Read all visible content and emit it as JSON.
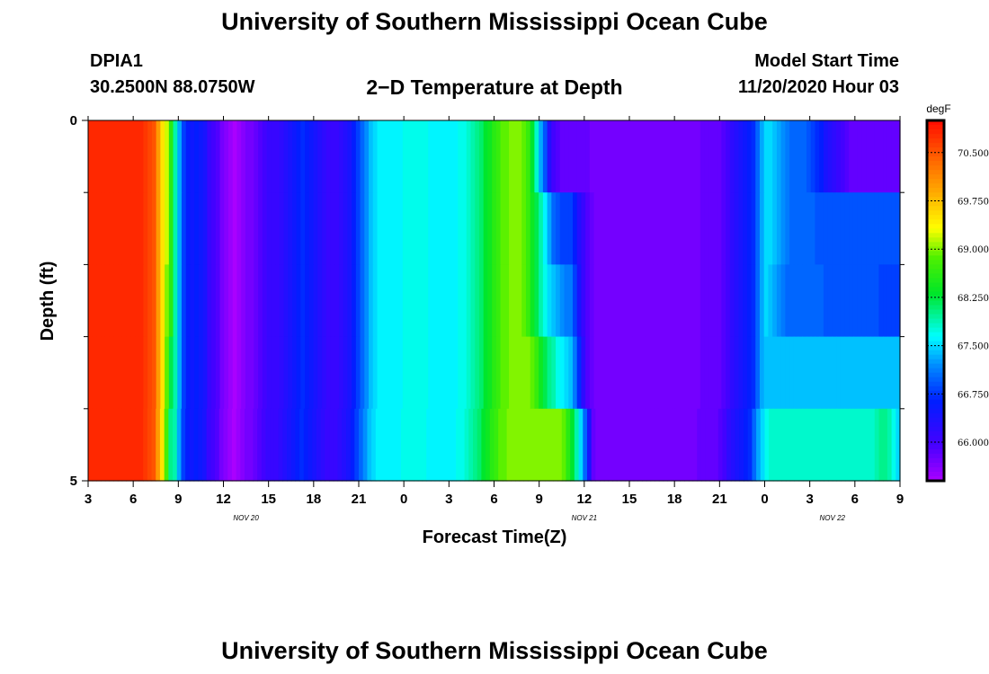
{
  "header": {
    "title": "University of Southern Mississippi Ocean Cube",
    "station_id": "DPIA1",
    "station_coords": "30.2500N 88.0750W",
    "plot_title": "2−D Temperature at Depth",
    "model_start_label": "Model Start Time",
    "model_start_value": "11/20/2020 Hour 03"
  },
  "footer": {
    "title": "University of Southern Mississippi Ocean Cube"
  },
  "chart_data": {
    "type": "heatmap",
    "title": "2−D Temperature at Depth",
    "xlabel": "Forecast Time(Z)",
    "ylabel": "Depth (ft)",
    "x_start_hour": 3,
    "x_hours": 54,
    "x_ticks": [
      {
        "hour": 0,
        "label": "3"
      },
      {
        "hour": 3,
        "label": "6"
      },
      {
        "hour": 6,
        "label": "9"
      },
      {
        "hour": 9,
        "label": "12"
      },
      {
        "hour": 12,
        "label": "15"
      },
      {
        "hour": 15,
        "label": "18"
      },
      {
        "hour": 18,
        "label": "21"
      },
      {
        "hour": 21,
        "label": "0"
      },
      {
        "hour": 24,
        "label": "3"
      },
      {
        "hour": 27,
        "label": "6"
      },
      {
        "hour": 30,
        "label": "9"
      },
      {
        "hour": 33,
        "label": "12"
      },
      {
        "hour": 36,
        "label": "15"
      },
      {
        "hour": 39,
        "label": "18"
      },
      {
        "hour": 42,
        "label": "21"
      },
      {
        "hour": 45,
        "label": "0"
      },
      {
        "hour": 48,
        "label": "3"
      },
      {
        "hour": 51,
        "label": "6"
      },
      {
        "hour": 54,
        "label": "9"
      }
    ],
    "date_labels": [
      {
        "hour": 10.5,
        "label": "NOV  20"
      },
      {
        "hour": 33,
        "label": "NOV  21"
      },
      {
        "hour": 49.5,
        "label": "NOV  22"
      }
    ],
    "y_range": [
      0,
      5
    ],
    "y_tick_labels": [
      {
        "value": 0,
        "label": "0"
      },
      {
        "value": 5,
        "label": "5"
      }
    ],
    "y_minor_ticks": [
      1,
      2,
      3,
      4
    ],
    "depth_layers": [
      0.5,
      1.5,
      2.5,
      3.5,
      4.5
    ],
    "colorbar": {
      "unit": "degF",
      "min": 65.4,
      "max": 71.0,
      "tick_values": [
        70.5,
        69.75,
        69.0,
        68.25,
        67.5,
        66.75,
        66.0
      ],
      "tick_labels": [
        "70.500",
        "69.750",
        "69.000",
        "68.250",
        "67.500",
        "66.750",
        "66.000"
      ]
    },
    "values_degF": [
      [
        70.8,
        70.8,
        70.8,
        70.8,
        70.8,
        70.8,
        70.8,
        70.8,
        70.8,
        70.8,
        70.8,
        70.8,
        70.8,
        70.7,
        70.6,
        70.5,
        70.0,
        69.5,
        69.2,
        68.6,
        67.9,
        67.3,
        66.8,
        66.6,
        66.5,
        66.6,
        66.5,
        66.4,
        66.1,
        66.0,
        65.9,
        65.7,
        65.6,
        65.5,
        65.4,
        65.5,
        65.6,
        65.7,
        65.7,
        65.8,
        65.9,
        66.0,
        66.1,
        66.1,
        66.1,
        66.2,
        66.3,
        66.4,
        66.5,
        66.6,
        66.7,
        66.6,
        66.5,
        66.4,
        66.3,
        66.2,
        66.1,
        66.1,
        66.1,
        66.2,
        66.3,
        66.4,
        66.6,
        66.8,
        67.0,
        67.2,
        67.4,
        67.5,
        67.6,
        67.6,
        67.6,
        67.6,
        67.6,
        67.6,
        67.7,
        67.7,
        67.7,
        67.7,
        67.7,
        67.7,
        67.6,
        67.6,
        67.6,
        67.6,
        67.6,
        67.6,
        67.6,
        67.7,
        67.7,
        67.8,
        67.9,
        68.0,
        68.1,
        68.3,
        68.4,
        68.6,
        68.7,
        68.9,
        68.9,
        69.0,
        69.0,
        69.0,
        68.9,
        68.7,
        68.3,
        67.8,
        67.3,
        66.9,
        66.3,
        66.0,
        65.9,
        65.8,
        65.8,
        65.8,
        65.8,
        65.8,
        65.8,
        65.8,
        65.7,
        65.7,
        65.7,
        65.7,
        65.7,
        65.7,
        65.7,
        65.7,
        65.7,
        65.7,
        65.7,
        65.7,
        65.7,
        65.7,
        65.7,
        65.7,
        65.7,
        65.7,
        65.7,
        65.7,
        65.7,
        65.7,
        65.7,
        65.7,
        65.7,
        65.7,
        65.8,
        65.8,
        65.8,
        65.8,
        65.8,
        65.9,
        66.0,
        66.2,
        66.3,
        66.4,
        66.5,
        66.6,
        66.7,
        67.0,
        67.3,
        67.5,
        67.5,
        67.4,
        67.3,
        67.2,
        67.1,
        67.0,
        67.0,
        67.0,
        67.0,
        66.9,
        66.8,
        66.7,
        66.6,
        66.4,
        66.3,
        66.2,
        66.1,
        66.0,
        65.9,
        65.8,
        65.8,
        65.8,
        65.8,
        65.8,
        65.8,
        65.8,
        65.8,
        65.8,
        65.8,
        65.8,
        65.8
      ],
      [
        70.8,
        70.8,
        70.8,
        70.8,
        70.8,
        70.8,
        70.8,
        70.8,
        70.8,
        70.8,
        70.8,
        70.8,
        70.8,
        70.7,
        70.6,
        70.5,
        70.0,
        69.5,
        69.2,
        68.6,
        67.9,
        67.3,
        66.8,
        66.6,
        66.5,
        66.6,
        66.5,
        66.4,
        66.1,
        66.0,
        65.9,
        65.7,
        65.6,
        65.5,
        65.4,
        65.5,
        65.6,
        65.7,
        65.7,
        65.8,
        65.9,
        66.0,
        66.1,
        66.1,
        66.1,
        66.2,
        66.3,
        66.4,
        66.5,
        66.6,
        66.7,
        66.6,
        66.5,
        66.4,
        66.3,
        66.2,
        66.1,
        66.1,
        66.1,
        66.2,
        66.3,
        66.4,
        66.6,
        66.8,
        67.0,
        67.2,
        67.4,
        67.5,
        67.6,
        67.6,
        67.6,
        67.6,
        67.6,
        67.6,
        67.7,
        67.7,
        67.7,
        67.7,
        67.7,
        67.7,
        67.6,
        67.6,
        67.6,
        67.6,
        67.6,
        67.6,
        67.6,
        67.7,
        67.7,
        67.8,
        67.9,
        68.0,
        68.1,
        68.3,
        68.4,
        68.6,
        68.7,
        68.9,
        68.9,
        69.0,
        69.0,
        69.0,
        68.9,
        68.7,
        68.4,
        68.2,
        67.9,
        67.6,
        67.3,
        67.0,
        66.9,
        66.8,
        66.8,
        66.8,
        66.6,
        66.3,
        66.1,
        65.9,
        65.8,
        65.7,
        65.7,
        65.7,
        65.7,
        65.7,
        65.7,
        65.7,
        65.7,
        65.7,
        65.7,
        65.7,
        65.7,
        65.7,
        65.7,
        65.7,
        65.7,
        65.7,
        65.7,
        65.7,
        65.7,
        65.7,
        65.7,
        65.7,
        65.7,
        65.7,
        65.8,
        65.8,
        65.8,
        65.8,
        65.8,
        65.9,
        66.0,
        66.2,
        66.3,
        66.4,
        66.5,
        66.6,
        66.7,
        67.0,
        67.3,
        67.5,
        67.5,
        67.4,
        67.3,
        67.2,
        67.1,
        67.0,
        67.0,
        67.0,
        67.0,
        67.0,
        67.0,
        66.9,
        66.9,
        66.9,
        66.9,
        66.9,
        66.9,
        66.9,
        66.9,
        66.9,
        66.9,
        66.9,
        66.9,
        66.9,
        66.9,
        66.9,
        66.9,
        66.9,
        66.9,
        66.9,
        66.9
      ],
      [
        70.8,
        70.8,
        70.8,
        70.8,
        70.8,
        70.8,
        70.8,
        70.8,
        70.8,
        70.8,
        70.8,
        70.8,
        70.8,
        70.7,
        70.6,
        70.5,
        70.0,
        69.5,
        69.0,
        68.6,
        67.9,
        67.3,
        66.8,
        66.6,
        66.5,
        66.6,
        66.5,
        66.4,
        66.1,
        66.0,
        65.9,
        65.7,
        65.6,
        65.5,
        65.4,
        65.5,
        65.6,
        65.7,
        65.7,
        65.8,
        65.9,
        66.0,
        66.1,
        66.1,
        66.1,
        66.2,
        66.3,
        66.4,
        66.5,
        66.6,
        66.7,
        66.6,
        66.5,
        66.4,
        66.3,
        66.2,
        66.1,
        66.1,
        66.1,
        66.2,
        66.3,
        66.4,
        66.6,
        66.8,
        67.0,
        67.2,
        67.4,
        67.5,
        67.6,
        67.6,
        67.6,
        67.6,
        67.6,
        67.6,
        67.7,
        67.7,
        67.7,
        67.7,
        67.7,
        67.7,
        67.6,
        67.6,
        67.6,
        67.6,
        67.6,
        67.6,
        67.6,
        67.7,
        67.7,
        67.8,
        67.9,
        68.0,
        68.1,
        68.3,
        68.4,
        68.6,
        68.7,
        68.9,
        68.9,
        69.0,
        69.0,
        69.0,
        68.9,
        68.7,
        68.4,
        68.2,
        67.9,
        67.7,
        67.5,
        67.4,
        67.3,
        67.2,
        67.1,
        67.1,
        66.8,
        66.4,
        66.1,
        65.9,
        65.8,
        65.7,
        65.7,
        65.7,
        65.7,
        65.7,
        65.7,
        65.7,
        65.7,
        65.7,
        65.7,
        65.7,
        65.7,
        65.7,
        65.7,
        65.7,
        65.7,
        65.7,
        65.7,
        65.7,
        65.7,
        65.7,
        65.7,
        65.7,
        65.7,
        65.7,
        65.8,
        65.8,
        65.8,
        65.8,
        65.8,
        65.9,
        66.0,
        66.2,
        66.3,
        66.4,
        66.5,
        66.6,
        66.7,
        67.0,
        67.3,
        67.5,
        67.4,
        67.3,
        67.2,
        67.1,
        67.0,
        67.0,
        67.0,
        67.0,
        67.0,
        67.0,
        67.0,
        67.0,
        67.0,
        66.9,
        66.9,
        66.9,
        66.9,
        66.9,
        66.9,
        66.9,
        66.9,
        66.9,
        66.9,
        66.9,
        66.9,
        66.9,
        66.8,
        66.8,
        66.8,
        66.8,
        66.8
      ],
      [
        70.8,
        70.8,
        70.8,
        70.8,
        70.8,
        70.8,
        70.8,
        70.8,
        70.8,
        70.8,
        70.8,
        70.8,
        70.8,
        70.7,
        70.6,
        70.5,
        70.0,
        69.5,
        68.9,
        68.2,
        67.9,
        67.3,
        66.8,
        66.6,
        66.5,
        66.6,
        66.5,
        66.4,
        66.1,
        66.0,
        65.9,
        65.7,
        65.6,
        65.5,
        65.4,
        65.5,
        65.6,
        65.7,
        65.7,
        65.8,
        65.9,
        66.0,
        66.1,
        66.1,
        66.1,
        66.2,
        66.3,
        66.4,
        66.5,
        66.6,
        66.7,
        66.6,
        66.5,
        66.4,
        66.3,
        66.2,
        66.1,
        66.1,
        66.1,
        66.2,
        66.3,
        66.4,
        66.6,
        66.8,
        67.0,
        67.2,
        67.4,
        67.5,
        67.6,
        67.6,
        67.6,
        67.6,
        67.6,
        67.6,
        67.7,
        67.7,
        67.7,
        67.7,
        67.7,
        67.7,
        67.6,
        67.6,
        67.6,
        67.6,
        67.6,
        67.6,
        67.6,
        67.7,
        67.7,
        67.8,
        67.9,
        68.0,
        68.1,
        68.3,
        68.4,
        68.6,
        68.7,
        68.9,
        68.9,
        69.0,
        69.0,
        69.0,
        69.0,
        69.0,
        68.9,
        68.7,
        68.4,
        68.2,
        68.0,
        67.9,
        67.7,
        67.6,
        67.5,
        67.4,
        67.1,
        66.7,
        66.2,
        65.9,
        65.8,
        65.7,
        65.7,
        65.7,
        65.7,
        65.7,
        65.7,
        65.7,
        65.7,
        65.7,
        65.7,
        65.7,
        65.7,
        65.7,
        65.7,
        65.7,
        65.7,
        65.7,
        65.7,
        65.7,
        65.7,
        65.7,
        65.7,
        65.7,
        65.7,
        65.7,
        65.8,
        65.8,
        65.8,
        65.8,
        65.8,
        65.9,
        66.0,
        66.2,
        66.3,
        66.4,
        66.5,
        66.6,
        66.7,
        67.0,
        67.3,
        67.4,
        67.4,
        67.4,
        67.4,
        67.4,
        67.4,
        67.4,
        67.4,
        67.4,
        67.4,
        67.4,
        67.4,
        67.4,
        67.4,
        67.4,
        67.4,
        67.4,
        67.4,
        67.4,
        67.4,
        67.4,
        67.4,
        67.4,
        67.4,
        67.4,
        67.4,
        67.4,
        67.4,
        67.4,
        67.4,
        67.4,
        67.4
      ],
      [
        70.8,
        70.8,
        70.8,
        70.8,
        70.8,
        70.8,
        70.8,
        70.8,
        70.8,
        70.8,
        70.8,
        70.8,
        70.8,
        70.7,
        70.6,
        70.5,
        70.0,
        69.5,
        68.8,
        68.0,
        67.9,
        67.3,
        66.8,
        66.6,
        66.5,
        66.6,
        66.5,
        66.4,
        66.1,
        66.0,
        65.9,
        65.7,
        65.6,
        65.5,
        65.4,
        65.5,
        65.6,
        65.7,
        65.7,
        65.8,
        65.9,
        66.0,
        66.1,
        66.1,
        66.1,
        66.2,
        66.3,
        66.4,
        66.5,
        66.6,
        66.7,
        66.6,
        66.5,
        66.4,
        66.3,
        66.2,
        66.1,
        66.1,
        66.1,
        66.2,
        66.3,
        66.4,
        66.6,
        66.8,
        67.0,
        67.2,
        67.4,
        67.5,
        67.6,
        67.6,
        67.6,
        67.6,
        67.6,
        67.6,
        67.7,
        67.7,
        67.7,
        67.7,
        67.7,
        67.7,
        67.6,
        67.6,
        67.6,
        67.6,
        67.6,
        67.6,
        67.6,
        67.7,
        67.7,
        67.8,
        67.9,
        68.0,
        68.1,
        68.3,
        68.4,
        68.6,
        68.7,
        68.9,
        68.9,
        69.0,
        69.0,
        69.0,
        69.0,
        69.0,
        69.0,
        69.0,
        69.0,
        69.0,
        69.0,
        69.0,
        69.0,
        69.0,
        68.9,
        68.6,
        68.3,
        67.9,
        67.5,
        67.0,
        66.4,
        65.8,
        65.7,
        65.7,
        65.7,
        65.7,
        65.7,
        65.7,
        65.7,
        65.7,
        65.7,
        65.7,
        65.7,
        65.7,
        65.7,
        65.7,
        65.7,
        65.7,
        65.7,
        65.7,
        65.7,
        65.7,
        65.7,
        65.7,
        65.7,
        65.7,
        65.8,
        65.8,
        65.8,
        65.8,
        65.8,
        65.9,
        66.0,
        66.2,
        66.3,
        66.4,
        66.5,
        66.6,
        66.7,
        67.0,
        67.3,
        67.5,
        67.7,
        67.8,
        67.8,
        67.8,
        67.8,
        67.8,
        67.8,
        67.8,
        67.8,
        67.8,
        67.8,
        67.8,
        67.8,
        67.8,
        67.8,
        67.8,
        67.8,
        67.8,
        67.8,
        67.8,
        67.8,
        67.8,
        67.8,
        67.8,
        67.8,
        67.8,
        67.9,
        68.0,
        68.0,
        67.9,
        67.7,
        67.5
      ]
    ]
  }
}
